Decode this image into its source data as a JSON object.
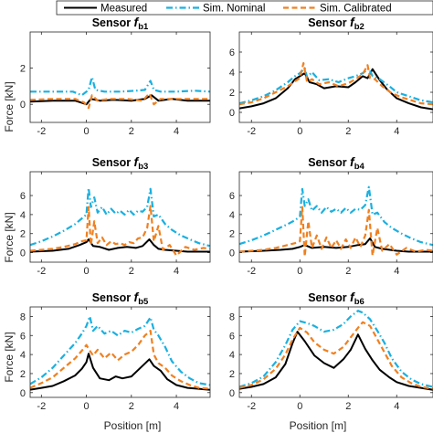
{
  "legend": {
    "placement": "top-center",
    "entries": [
      {
        "label": "Measured",
        "color": "#000000",
        "style": "solid"
      },
      {
        "label": "Sim. Nominal",
        "color": "#1ab0e0",
        "style": "dashdot"
      },
      {
        "label": "Sim. Calibrated",
        "color": "#f08020",
        "style": "dashed"
      }
    ]
  },
  "axes": {
    "xlabel": "Position [m]",
    "ylabel": "Force [kN]"
  },
  "chart_data": [
    {
      "type": "line",
      "title_prefix": "Sensor",
      "title_symbol": "f",
      "title_sub": "b1",
      "xlim": [
        -2.5,
        5.5
      ],
      "ylim": [
        -1,
        4
      ],
      "xticks": [
        -2,
        0,
        2,
        4
      ],
      "yticks": [
        0,
        2
      ],
      "grid": false,
      "series": [
        {
          "name": "Measured",
          "x": [
            -2.5,
            -1.5,
            -0.5,
            0,
            0.2,
            0.6,
            1.2,
            2.0,
            2.6,
            2.9,
            3.2,
            3.8,
            4.5,
            5.5
          ],
          "y": [
            0.15,
            0.2,
            0.2,
            0.0,
            0.3,
            0.2,
            0.25,
            0.2,
            0.3,
            0.5,
            0.2,
            0.3,
            0.2,
            0.2
          ]
        },
        {
          "name": "Sim. Nominal",
          "x": [
            -2.5,
            -1.5,
            -0.6,
            -0.2,
            0.1,
            0.25,
            0.4,
            0.8,
            1.5,
            2.2,
            2.6,
            2.85,
            3.0,
            3.3,
            4.0,
            4.8,
            5.5
          ],
          "y": [
            0.7,
            0.7,
            0.7,
            0.5,
            0.8,
            1.5,
            0.8,
            0.7,
            0.7,
            0.75,
            0.8,
            1.3,
            0.8,
            0.7,
            0.7,
            0.75,
            0.7
          ]
        },
        {
          "name": "Sim. Calibrated",
          "x": [
            -2.5,
            -1.5,
            -0.5,
            -0.1,
            0.1,
            0.25,
            0.5,
            1.0,
            1.8,
            2.5,
            2.8,
            3.0,
            3.3,
            4.0,
            5.0,
            5.5
          ],
          "y": [
            0.25,
            0.3,
            0.3,
            0.1,
            -0.2,
            0.5,
            0.2,
            0.3,
            0.3,
            0.2,
            0.6,
            0.0,
            0.3,
            0.3,
            0.3,
            0.3
          ]
        }
      ]
    },
    {
      "type": "line",
      "title_prefix": "Sensor",
      "title_symbol": "f",
      "title_sub": "b2",
      "xlim": [
        -2.5,
        5.5
      ],
      "ylim": [
        -1,
        8
      ],
      "xticks": [
        -2,
        0,
        2,
        4
      ],
      "yticks": [
        0,
        2,
        4,
        6
      ],
      "grid": false,
      "series": [
        {
          "name": "Measured",
          "x": [
            -2.5,
            -2.0,
            -1.5,
            -1.0,
            -0.5,
            -0.2,
            0.0,
            0.2,
            0.4,
            0.7,
            1.0,
            1.5,
            2.0,
            2.3,
            2.6,
            2.8,
            3.0,
            3.3,
            3.6,
            4.0,
            4.5,
            5.0,
            5.5
          ],
          "y": [
            0.4,
            0.6,
            0.9,
            1.4,
            2.4,
            3.3,
            3.6,
            3.9,
            3.0,
            2.8,
            2.4,
            2.6,
            2.5,
            3.0,
            3.6,
            3.4,
            4.3,
            3.2,
            2.3,
            1.4,
            0.9,
            0.5,
            0.3
          ]
        },
        {
          "name": "Sim. Nominal",
          "x": [
            -2.5,
            -2.0,
            -1.5,
            -1.0,
            -0.5,
            -0.2,
            0.0,
            0.2,
            0.3,
            0.5,
            0.8,
            1.2,
            1.6,
            2.0,
            2.3,
            2.6,
            2.85,
            3.0,
            3.3,
            3.7,
            4.0,
            4.5,
            5.0,
            5.5
          ],
          "y": [
            0.9,
            1.2,
            1.6,
            2.2,
            3.0,
            3.6,
            3.9,
            4.4,
            3.5,
            4.0,
            3.2,
            3.3,
            3.0,
            3.4,
            3.6,
            3.9,
            4.4,
            3.6,
            3.3,
            2.6,
            2.0,
            1.6,
            1.2,
            1.0
          ]
        },
        {
          "name": "Sim. Calibrated",
          "x": [
            -2.5,
            -2.0,
            -1.5,
            -1.0,
            -0.5,
            -0.2,
            0.0,
            0.15,
            0.3,
            0.5,
            0.8,
            1.2,
            1.6,
            2.0,
            2.3,
            2.6,
            2.8,
            2.9,
            3.1,
            3.4,
            3.8,
            4.2,
            4.6,
            5.0,
            5.5
          ],
          "y": [
            0.8,
            1.0,
            1.4,
            2.0,
            2.6,
            3.1,
            3.4,
            4.9,
            3.0,
            3.3,
            2.8,
            3.0,
            2.6,
            2.9,
            3.3,
            3.8,
            4.7,
            3.4,
            3.3,
            2.6,
            1.9,
            1.5,
            1.2,
            0.9,
            0.8
          ]
        }
      ]
    },
    {
      "type": "line",
      "title_prefix": "Sensor",
      "title_symbol": "f",
      "title_sub": "b3",
      "xlim": [
        -2.5,
        5.5
      ],
      "ylim": [
        -1,
        8.5
      ],
      "xticks": [
        -2,
        0,
        2,
        4
      ],
      "yticks": [
        0,
        2,
        4,
        6
      ],
      "grid": false,
      "series": [
        {
          "name": "Measured",
          "x": [
            -2.5,
            -1.5,
            -0.8,
            -0.3,
            0.0,
            0.1,
            0.3,
            0.6,
            1.0,
            1.4,
            1.8,
            2.2,
            2.5,
            2.8,
            3.0,
            3.2,
            3.5,
            4.0,
            4.5,
            5.0,
            5.5
          ],
          "y": [
            0.1,
            0.2,
            0.4,
            0.8,
            1.1,
            1.4,
            0.7,
            0.6,
            0.3,
            0.5,
            0.6,
            0.5,
            0.7,
            1.4,
            0.8,
            0.4,
            0.3,
            0.2,
            0.1,
            0.1,
            0.1
          ]
        },
        {
          "name": "Sim. Nominal",
          "x": [
            -2.5,
            -2.0,
            -1.5,
            -1.0,
            -0.5,
            -0.2,
            0.0,
            0.1,
            0.2,
            0.35,
            0.5,
            0.7,
            0.9,
            1.1,
            1.3,
            1.5,
            1.7,
            1.9,
            2.1,
            2.3,
            2.5,
            2.7,
            2.85,
            3.0,
            3.2,
            3.5,
            3.8,
            4.2,
            4.6,
            5.0,
            5.5
          ],
          "y": [
            0.8,
            1.2,
            1.7,
            2.3,
            3.0,
            3.6,
            4.0,
            6.8,
            4.8,
            5.8,
            4.2,
            4.8,
            4.0,
            4.6,
            4.1,
            4.4,
            4.0,
            4.5,
            4.0,
            4.4,
            4.3,
            4.8,
            6.7,
            3.8,
            4.0,
            3.0,
            2.4,
            1.8,
            1.4,
            1.0,
            0.7
          ]
        },
        {
          "name": "Sim. Calibrated",
          "x": [
            -2.5,
            -2.0,
            -1.5,
            -1.0,
            -0.5,
            -0.2,
            0.0,
            0.1,
            0.2,
            0.35,
            0.5,
            0.7,
            0.9,
            1.1,
            1.3,
            1.5,
            1.7,
            1.9,
            2.1,
            2.3,
            2.5,
            2.7,
            2.85,
            3.0,
            3.2,
            3.4,
            3.7,
            4.0,
            4.4,
            4.8,
            5.2,
            5.5
          ],
          "y": [
            0.2,
            0.3,
            0.4,
            0.6,
            0.9,
            1.2,
            1.3,
            4.8,
            0.8,
            3.3,
            1.0,
            1.6,
            0.8,
            1.2,
            0.9,
            1.0,
            0.8,
            1.1,
            1.0,
            1.5,
            1.6,
            2.6,
            4.9,
            1.2,
            2.8,
            0.3,
            0.8,
            -0.3,
            0.6,
            0.3,
            0.5,
            0.4
          ]
        }
      ]
    },
    {
      "type": "line",
      "title_prefix": "Sensor",
      "title_symbol": "f",
      "title_sub": "b4",
      "xlim": [
        -2.5,
        5.5
      ],
      "ylim": [
        -1,
        8.5
      ],
      "xticks": [
        -2,
        0,
        2,
        4
      ],
      "yticks": [
        0,
        2,
        4,
        6
      ],
      "grid": false,
      "series": [
        {
          "name": "Measured",
          "x": [
            -2.5,
            -1.5,
            -0.8,
            -0.3,
            0.0,
            0.2,
            0.5,
            1.0,
            1.5,
            2.0,
            2.4,
            2.7,
            2.9,
            3.1,
            3.4,
            4.0,
            4.5,
            5.0,
            5.5
          ],
          "y": [
            0.1,
            0.2,
            0.3,
            0.4,
            0.6,
            0.8,
            0.5,
            0.6,
            0.5,
            0.6,
            0.8,
            0.9,
            1.5,
            0.6,
            0.4,
            0.2,
            0.1,
            0.1,
            0.1
          ]
        },
        {
          "name": "Sim. Nominal",
          "x": [
            -2.5,
            -2.0,
            -1.5,
            -1.0,
            -0.5,
            -0.2,
            0.0,
            0.1,
            0.2,
            0.35,
            0.5,
            0.7,
            0.9,
            1.1,
            1.3,
            1.5,
            1.7,
            1.9,
            2.1,
            2.3,
            2.5,
            2.7,
            2.85,
            3.0,
            3.2,
            3.5,
            3.8,
            4.2,
            4.6,
            5.0,
            5.5
          ],
          "y": [
            0.9,
            1.3,
            1.8,
            2.4,
            3.0,
            3.4,
            3.8,
            6.7,
            4.9,
            5.6,
            4.4,
            4.9,
            4.2,
            4.8,
            4.3,
            4.6,
            4.2,
            4.7,
            4.2,
            4.6,
            4.5,
            5.0,
            6.9,
            4.0,
            4.2,
            3.2,
            2.6,
            2.0,
            1.5,
            1.1,
            0.8
          ]
        },
        {
          "name": "Sim. Calibrated",
          "x": [
            -2.5,
            -2.0,
            -1.5,
            -1.0,
            -0.5,
            -0.2,
            0.0,
            0.1,
            0.2,
            0.35,
            0.5,
            0.7,
            0.9,
            1.1,
            1.3,
            1.5,
            1.7,
            1.9,
            2.1,
            2.3,
            2.5,
            2.7,
            2.85,
            3.0,
            3.2,
            3.4,
            3.7,
            4.0,
            4.4,
            4.8,
            5.2,
            5.5
          ],
          "y": [
            0.1,
            0.2,
            0.3,
            0.5,
            0.8,
            1.0,
            1.2,
            4.8,
            -0.4,
            3.3,
            0.5,
            1.8,
            0.4,
            1.6,
            0.5,
            1.3,
            0.4,
            1.4,
            0.5,
            1.6,
            0.6,
            1.8,
            4.5,
            -0.3,
            2.6,
            0.2,
            0.9,
            -0.2,
            0.5,
            0.1,
            0.3,
            0.2
          ]
        }
      ]
    },
    {
      "type": "line",
      "title_prefix": "Sensor",
      "title_symbol": "f",
      "title_sub": "b5",
      "xlim": [
        -2.5,
        5.5
      ],
      "ylim": [
        -0.5,
        9
      ],
      "xticks": [
        -2,
        0,
        2,
        4
      ],
      "yticks": [
        0,
        2,
        4,
        6,
        8
      ],
      "grid": false,
      "series": [
        {
          "name": "Measured",
          "x": [
            -2.5,
            -2.0,
            -1.5,
            -1.0,
            -0.5,
            -0.2,
            0.0,
            0.1,
            0.3,
            0.6,
            1.0,
            1.3,
            1.6,
            2.0,
            2.4,
            2.8,
            3.0,
            3.3,
            3.6,
            4.0,
            4.5,
            5.0,
            5.5
          ],
          "y": [
            0.3,
            0.5,
            0.7,
            1.2,
            1.8,
            2.5,
            3.2,
            4.1,
            2.6,
            1.5,
            1.3,
            1.7,
            1.5,
            1.7,
            2.6,
            3.5,
            2.8,
            2.3,
            1.4,
            0.8,
            0.5,
            0.4,
            0.3
          ]
        },
        {
          "name": "Sim. Nominal",
          "x": [
            -2.5,
            -2.0,
            -1.5,
            -1.0,
            -0.5,
            -0.2,
            0.0,
            0.15,
            0.3,
            0.5,
            0.8,
            1.1,
            1.4,
            1.7,
            2.0,
            2.3,
            2.6,
            2.85,
            3.0,
            3.2,
            3.5,
            3.8,
            4.2,
            4.6,
            5.0,
            5.5
          ],
          "y": [
            0.9,
            1.6,
            2.6,
            3.9,
            5.2,
            6.2,
            7.0,
            8.0,
            6.5,
            7.0,
            6.2,
            6.5,
            6.0,
            6.5,
            6.3,
            6.7,
            7.0,
            7.9,
            6.6,
            6.0,
            4.8,
            3.3,
            2.2,
            1.5,
            1.0,
            0.8
          ]
        },
        {
          "name": "Sim. Calibrated",
          "x": [
            -2.5,
            -2.0,
            -1.5,
            -1.0,
            -0.5,
            -0.2,
            0.0,
            0.15,
            0.3,
            0.5,
            0.8,
            1.1,
            1.4,
            1.7,
            2.0,
            2.3,
            2.6,
            2.85,
            3.0,
            3.2,
            3.5,
            3.8,
            4.2,
            4.6,
            5.0,
            5.5
          ],
          "y": [
            0.5,
            1.0,
            1.6,
            2.6,
            3.6,
            4.4,
            5.0,
            4.4,
            3.9,
            4.5,
            3.6,
            4.2,
            3.4,
            4.0,
            4.3,
            5.0,
            6.0,
            6.5,
            4.0,
            3.1,
            2.6,
            1.8,
            1.2,
            0.8,
            0.5,
            0.4
          ]
        }
      ]
    },
    {
      "type": "line",
      "title_prefix": "Sensor",
      "title_symbol": "f",
      "title_sub": "b6",
      "xlim": [
        -2.5,
        5.5
      ],
      "ylim": [
        -0.5,
        9
      ],
      "xticks": [
        -2,
        0,
        2,
        4
      ],
      "yticks": [
        0,
        2,
        4,
        6,
        8
      ],
      "grid": false,
      "series": [
        {
          "name": "Measured",
          "x": [
            -2.5,
            -2.0,
            -1.5,
            -1.0,
            -0.6,
            -0.3,
            -0.1,
            0.2,
            0.6,
            1.0,
            1.4,
            1.8,
            2.1,
            2.4,
            2.7,
            3.0,
            3.3,
            3.7,
            4.0,
            4.5,
            5.0,
            5.5
          ],
          "y": [
            0.4,
            0.6,
            0.9,
            1.6,
            3.0,
            5.2,
            6.4,
            5.4,
            3.9,
            3.1,
            2.6,
            3.5,
            4.5,
            6.1,
            4.6,
            3.4,
            2.4,
            1.6,
            1.1,
            0.7,
            0.5,
            0.3
          ]
        },
        {
          "name": "Sim. Nominal",
          "x": [
            -2.5,
            -2.0,
            -1.5,
            -1.0,
            -0.6,
            -0.3,
            0.0,
            0.3,
            0.6,
            1.0,
            1.4,
            1.8,
            2.1,
            2.4,
            2.6,
            2.9,
            3.2,
            3.5,
            3.8,
            4.2,
            4.6,
            5.0,
            5.5
          ],
          "y": [
            0.6,
            1.0,
            1.7,
            3.2,
            5.0,
            6.6,
            7.5,
            7.3,
            7.0,
            6.4,
            6.6,
            7.2,
            8.0,
            8.6,
            8.4,
            7.7,
            6.5,
            5.2,
            3.6,
            2.2,
            1.4,
            0.9,
            0.6
          ]
        },
        {
          "name": "Sim. Calibrated",
          "x": [
            -2.5,
            -2.0,
            -1.5,
            -1.0,
            -0.6,
            -0.3,
            0.0,
            0.3,
            0.6,
            1.0,
            1.4,
            1.8,
            2.1,
            2.4,
            2.6,
            2.9,
            3.2,
            3.5,
            3.8,
            4.2,
            4.6,
            5.0,
            5.5
          ],
          "y": [
            0.5,
            0.8,
            1.4,
            2.5,
            4.0,
            5.6,
            6.8,
            6.3,
            5.3,
            4.5,
            4.1,
            4.8,
            5.8,
            6.8,
            7.4,
            7.0,
            5.6,
            4.2,
            2.8,
            1.6,
            1.0,
            0.6,
            0.4
          ]
        }
      ]
    }
  ]
}
